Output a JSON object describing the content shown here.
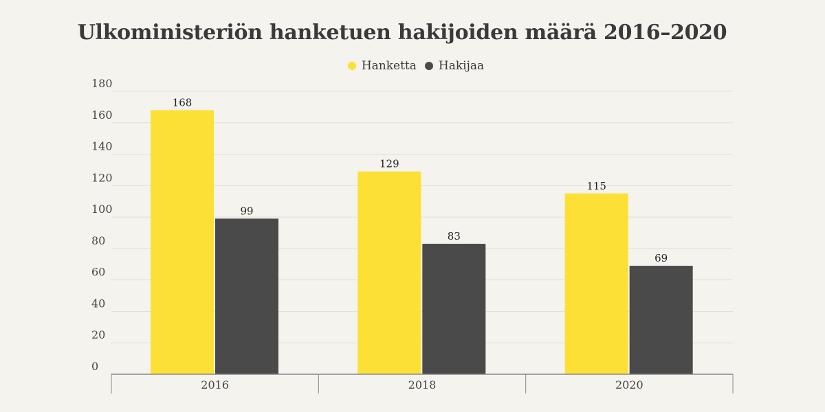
{
  "chart_data": {
    "type": "bar",
    "title": "Ulkoministeriön hanketuen hakijoiden määrä 2016–2020",
    "categories": [
      "2016",
      "2018",
      "2020"
    ],
    "series": [
      {
        "name": "Hanketta",
        "color": "#fce035",
        "values": [
          168,
          129,
          115
        ]
      },
      {
        "name": "Hakijaa",
        "color": "#4a4a4a",
        "values": [
          99,
          83,
          69
        ]
      }
    ],
    "ylim": [
      0,
      180
    ],
    "yticks": [
      0,
      20,
      40,
      60,
      80,
      100,
      120,
      140,
      160,
      180
    ],
    "grid": true,
    "legend_position": "top-center"
  }
}
